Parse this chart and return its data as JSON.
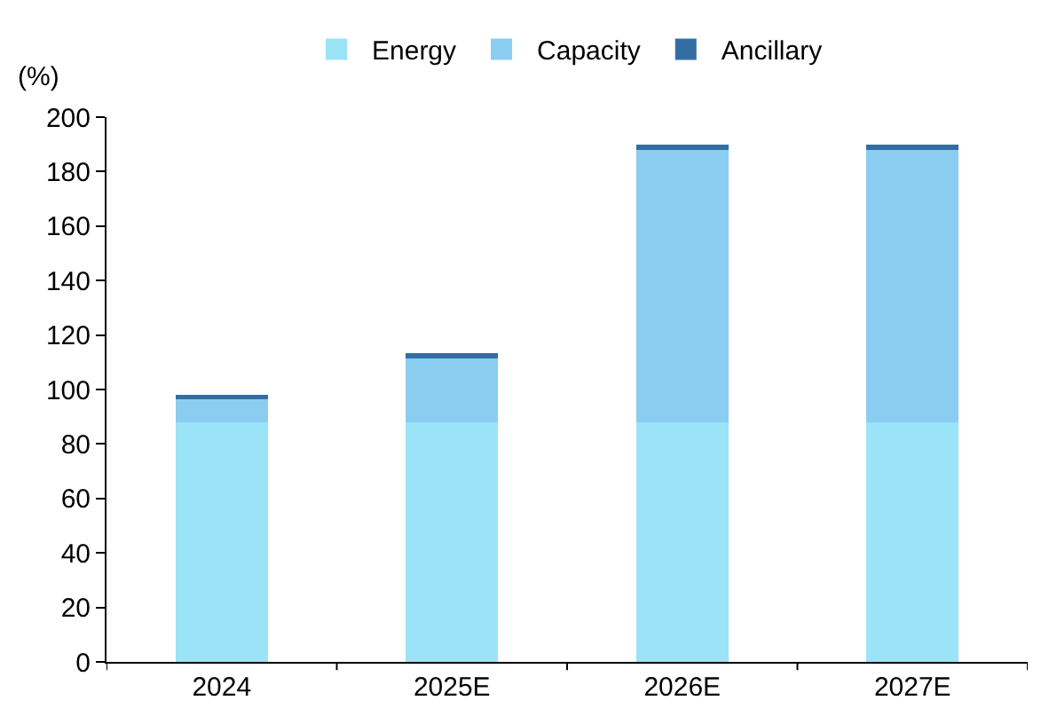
{
  "chart_data": {
    "type": "bar",
    "stacked": true,
    "ylabel": "(%)",
    "categories": [
      "2024",
      "2025E",
      "2026E",
      "2027E"
    ],
    "series": [
      {
        "name": "Energy",
        "color": "#9be3f7",
        "values": [
          88,
          88,
          88,
          88
        ]
      },
      {
        "name": "Capacity",
        "color": "#8acdf0",
        "values": [
          8.5,
          23.5,
          100,
          100
        ]
      },
      {
        "name": "Ancillary",
        "color": "#336ea3",
        "values": [
          1.5,
          2,
          2,
          2
        ]
      }
    ],
    "ylim": [
      0,
      200
    ],
    "yticks": [
      0,
      20,
      40,
      60,
      80,
      100,
      120,
      140,
      160,
      180,
      200
    ],
    "legend": "top"
  }
}
